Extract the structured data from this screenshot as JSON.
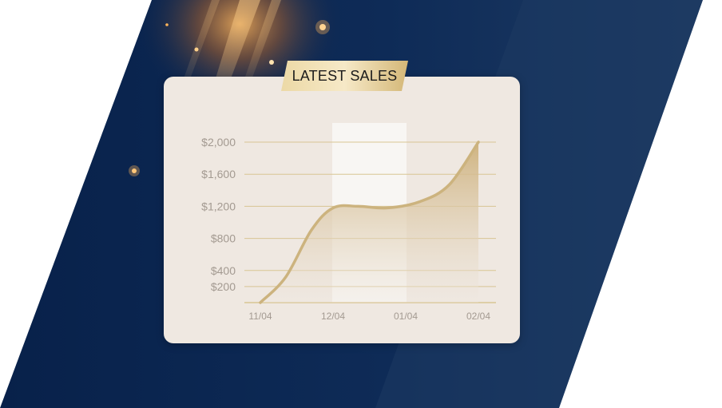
{
  "colors": {
    "navy_dark": "#0b2650",
    "navy_light": "#1d3a63",
    "card_bg": "#efe8e1",
    "gold": "#d4bc88",
    "gold_line": "#ccb37e",
    "grid_line": "#d8c593",
    "tick_text": "#a39a91",
    "highlight_band": "#f8f6f3"
  },
  "chart_data": {
    "type": "area",
    "title": "LATEST SALES",
    "x_ticks": [
      "11/04",
      "12/04",
      "01/04",
      "02/04"
    ],
    "y_ticks": [
      {
        "value": 200,
        "label": "$200"
      },
      {
        "value": 400,
        "label": "$400"
      },
      {
        "value": 800,
        "label": "$800"
      },
      {
        "value": 1200,
        "label": "$1,200"
      },
      {
        "value": 1600,
        "label": "$1,600"
      },
      {
        "value": 2000,
        "label": "$2,000"
      }
    ],
    "series": [
      {
        "values": [
          {
            "x": 0,
            "y": 0
          },
          {
            "x": 0.35,
            "y": 320
          },
          {
            "x": 0.7,
            "y": 900
          },
          {
            "x": 1,
            "y": 1180
          },
          {
            "x": 1.35,
            "y": 1200
          },
          {
            "x": 1.75,
            "y": 1180
          },
          {
            "x": 2.2,
            "y": 1260
          },
          {
            "x": 2.6,
            "y": 1470
          },
          {
            "x": 3,
            "y": 2000
          }
        ]
      }
    ],
    "highlight_range": [
      "12/04",
      "01/04"
    ],
    "ylim": [
      0,
      2000
    ],
    "grid": true
  }
}
